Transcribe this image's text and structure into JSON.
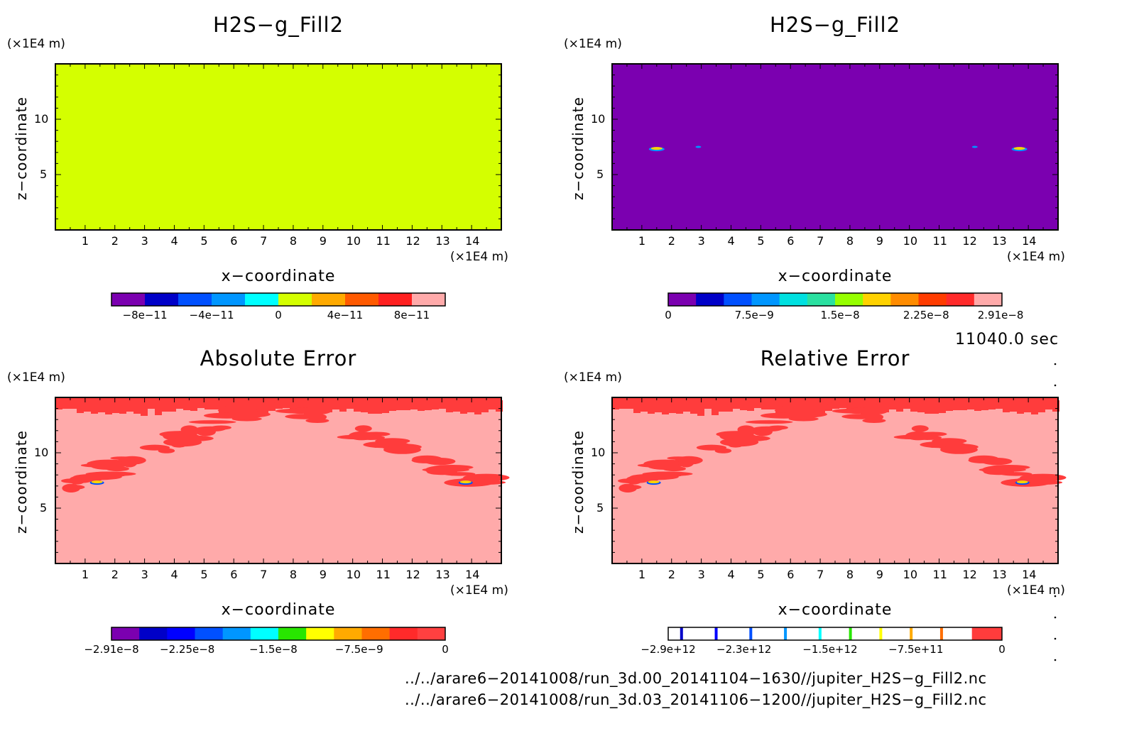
{
  "panels": [
    {
      "title": "H2S−g_Fill2",
      "ylabel": "z−coordinate",
      "xlabel": "x−coordinate",
      "yunit": "(×1E4 m)",
      "xunit": "(×1E4 m)",
      "field": "uniform",
      "field_color": "#d4ff00",
      "colorbar": {
        "colors": [
          "#7b00b0",
          "#0000c8",
          "#0050ff",
          "#0096ff",
          "#00ffff",
          "#d4ff00",
          "#ffaa00",
          "#ff5a00",
          "#ff2020",
          "#ffaaaa"
        ],
        "ticks": [
          {
            "label": "−8e−11",
            "pos": 0.1
          },
          {
            "label": "−4e−11",
            "pos": 0.3
          },
          {
            "label": "0",
            "pos": 0.5
          },
          {
            "label": "4e−11",
            "pos": 0.7
          },
          {
            "label": "8e−11",
            "pos": 0.9
          }
        ]
      }
    },
    {
      "title": "H2S−g_Fill2",
      "ylabel": "z−coordinate",
      "xlabel": "x−coordinate",
      "yunit": "(×1E4 m)",
      "xunit": "(×1E4 m)",
      "field": "uniform",
      "field_color": "#7b00b0",
      "features": true,
      "colorbar": {
        "colors": [
          "#7b00b0",
          "#0000c8",
          "#0050ff",
          "#0096ff",
          "#00e0e0",
          "#2ae0a0",
          "#96ff00",
          "#ffd200",
          "#ff8c00",
          "#ff3c00",
          "#ff2a2a",
          "#ffaaaa"
        ],
        "ticks": [
          {
            "label": "0",
            "pos": 0.0
          },
          {
            "label": "7.5e−9",
            "pos": 0.258
          },
          {
            "label": "1.5e−8",
            "pos": 0.515
          },
          {
            "label": "2.25e−8",
            "pos": 0.773
          },
          {
            "label": "2.91e−8",
            "pos": 0.996
          }
        ]
      }
    },
    {
      "title": "Absolute Error",
      "ylabel": "z−coordinate",
      "xlabel": "x−coordinate",
      "yunit": "(×1E4 m)",
      "xunit": "(×1E4 m)",
      "field": "error",
      "colorbar": {
        "colors": [
          "#7b00b0",
          "#0000c8",
          "#0000ff",
          "#0050ff",
          "#0096ff",
          "#00ffff",
          "#28e600",
          "#ffff00",
          "#ffaa00",
          "#ff6e00",
          "#ff2a2a",
          "#ff4040"
        ],
        "ticks": [
          {
            "label": "−2.91e−8",
            "pos": 0.0
          },
          {
            "label": "−2.25e−8",
            "pos": 0.227
          },
          {
            "label": "−1.5e−8",
            "pos": 0.485
          },
          {
            "label": "−7.5e−9",
            "pos": 0.742
          },
          {
            "label": "0",
            "pos": 1.0
          }
        ]
      }
    },
    {
      "title": "Relative Error",
      "ylabel": "z−coordinate",
      "xlabel": "x−coordinate",
      "yunit": "(×1E4 m)",
      "xunit": "(×1E4 m)",
      "field": "error",
      "colorbar": {
        "type": "lines",
        "line_colors": [
          "#0000c8",
          "#0000ff",
          "#0050ff",
          "#0096ff",
          "#00ffff",
          "#28e600",
          "#ffff00",
          "#ffaa00",
          "#ff6e00"
        ],
        "last_color": "#ff3c3c",
        "ticks": [
          {
            "label": "−2.9e+12",
            "pos": 0.0
          },
          {
            "label": "−2.3e+12",
            "pos": 0.227
          },
          {
            "label": "−1.5e+12",
            "pos": 0.485
          },
          {
            "label": "−7.5e+11",
            "pos": 0.742
          },
          {
            "label": "0",
            "pos": 1.0
          }
        ]
      }
    }
  ],
  "time_label": "11040.0 sec",
  "footer": [
    "../../arare6−20141008/run_3d.00_20141104−1630//jupiter_H2S−g_Fill2.nc",
    "../../arare6−20141008/run_3d.03_20141106−1200//jupiter_H2S−g_Fill2.nc"
  ],
  "chart_data": [
    {
      "type": "heatmap",
      "title": "H2S−g_Fill2",
      "xlabel": "x−coordinate",
      "ylabel": "z−coordinate",
      "x_ticks": [
        1,
        2,
        3,
        4,
        5,
        6,
        7,
        8,
        9,
        10,
        11,
        12,
        13,
        14
      ],
      "y_ticks": [
        5,
        10
      ],
      "xlim": [
        0,
        15
      ],
      "ylim": [
        0,
        15
      ],
      "colorbar_ticks": [
        "−8e−11",
        "−4e−11",
        "0",
        "4e−11",
        "8e−11"
      ],
      "value": "uniform 0"
    },
    {
      "type": "heatmap",
      "title": "H2S−g_Fill2",
      "xlabel": "x−coordinate",
      "ylabel": "z−coordinate",
      "x_ticks": [
        1,
        2,
        3,
        4,
        5,
        6,
        7,
        8,
        9,
        10,
        11,
        12,
        13,
        14
      ],
      "y_ticks": [
        5,
        10
      ],
      "xlim": [
        0,
        15
      ],
      "ylim": [
        0,
        15
      ],
      "colorbar_ticks": [
        "0",
        "7.5e−9",
        "1.5e−8",
        "2.25e−8",
        "2.91e−8"
      ],
      "features": [
        {
          "x": 1.5,
          "z": 7.3
        },
        {
          "x": 2.9,
          "z": 7.5
        },
        {
          "x": 12.2,
          "z": 7.5
        },
        {
          "x": 13.7,
          "z": 7.3
        }
      ]
    },
    {
      "type": "heatmap",
      "title": "Absolute Error",
      "xlabel": "x−coordinate",
      "ylabel": "z−coordinate",
      "x_ticks": [
        1,
        2,
        3,
        4,
        5,
        6,
        7,
        8,
        9,
        10,
        11,
        12,
        13,
        14
      ],
      "y_ticks": [
        5,
        10
      ],
      "xlim": [
        0,
        15
      ],
      "ylim": [
        0,
        15
      ],
      "colorbar_ticks": [
        "−2.91e−8",
        "−2.25e−8",
        "−1.5e−8",
        "−7.5e−9",
        "0"
      ]
    },
    {
      "type": "heatmap",
      "title": "Relative Error",
      "xlabel": "x−coordinate",
      "ylabel": "z−coordinate",
      "x_ticks": [
        1,
        2,
        3,
        4,
        5,
        6,
        7,
        8,
        9,
        10,
        11,
        12,
        13,
        14
      ],
      "y_ticks": [
        5,
        10
      ],
      "xlim": [
        0,
        15
      ],
      "ylim": [
        0,
        15
      ],
      "colorbar_ticks": [
        "−2.9e+12",
        "−2.3e+12",
        "−1.5e+12",
        "−7.5e+11",
        "0"
      ]
    }
  ]
}
